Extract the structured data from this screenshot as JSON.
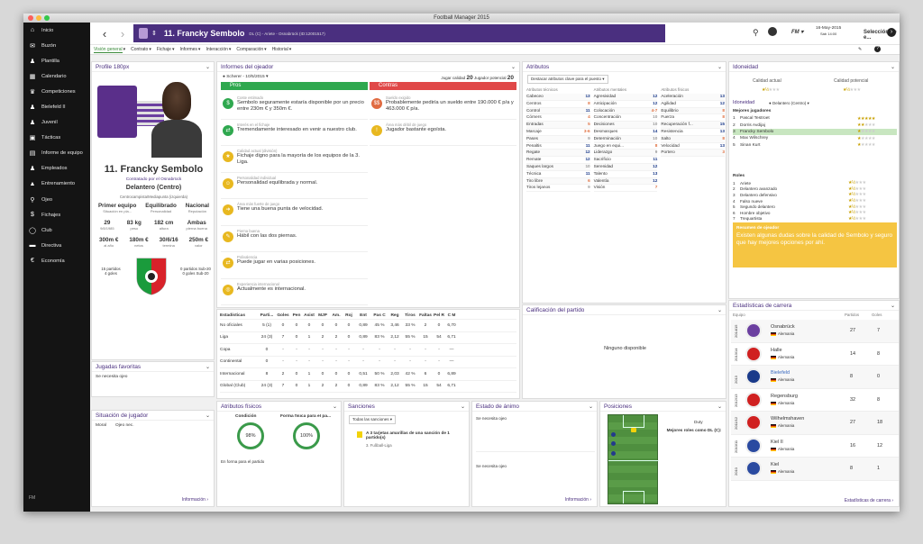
{
  "window_title": "Football Manager 2015",
  "sidebar": {
    "items": [
      {
        "icon": "home-icon",
        "glyph": "⌂",
        "label": "Inicio"
      },
      {
        "icon": "mail-icon",
        "glyph": "✉",
        "label": "Buzón"
      },
      {
        "icon": "people-icon",
        "glyph": "♟",
        "label": "Plantilla"
      },
      {
        "icon": "calendar-icon",
        "glyph": "▦",
        "label": "Calendario"
      },
      {
        "icon": "trophy-icon",
        "glyph": "♛",
        "label": "Competiciones"
      },
      {
        "icon": "people-icon",
        "glyph": "♟",
        "label": "Bielefeld II"
      },
      {
        "icon": "people-icon",
        "glyph": "♟",
        "label": "Juvenil"
      },
      {
        "icon": "tactics-icon",
        "glyph": "▣",
        "label": "Tácticas"
      },
      {
        "icon": "report-icon",
        "glyph": "▤",
        "label": "Informe de equipo"
      },
      {
        "icon": "staff-icon",
        "glyph": "♟",
        "label": "Empleados"
      },
      {
        "icon": "training-icon",
        "glyph": "▲",
        "label": "Entrenamiento"
      },
      {
        "icon": "search-icon",
        "glyph": "⚲",
        "label": "Ojeo"
      },
      {
        "icon": "transfer-icon",
        "glyph": "$",
        "label": "Fichajes"
      },
      {
        "icon": "club-icon",
        "glyph": "◯",
        "label": "Club"
      },
      {
        "icon": "board-icon",
        "glyph": "▬",
        "label": "Directiva"
      },
      {
        "icon": "finance-icon",
        "glyph": "€",
        "label": "Economía"
      }
    ],
    "footer": "FM"
  },
  "topbar": {
    "player_name": "11. Francky Sembolo",
    "player_sub": "DL (C) - Ariete - Osnabrück (ID:12001517)",
    "date": "16-May-2015",
    "day": "Sáb 14:00",
    "team_select": "Selección de e..."
  },
  "tabs": [
    "Visión general",
    "Contrato",
    "Fichaje",
    "Informes",
    "Interacción",
    "Comparación",
    "Historial"
  ],
  "profile": {
    "title": "Profile 180px",
    "name": "11. Francky Sembolo",
    "contract": "Contratado por el Osnabrück",
    "position": "Delantero (Centro)",
    "roles": "Centrocampista/Mediapunta (izquierda)",
    "status": [
      {
        "value": "Primer equipo",
        "label": "Situación en pla..."
      },
      {
        "value": "Equilibrado",
        "label": "Personalidad"
      },
      {
        "value": "Nacional",
        "label": "Reputación"
      }
    ],
    "stats1": [
      {
        "value": "29",
        "label": "9/8/1985"
      },
      {
        "value": "83 kg",
        "label": "peso"
      },
      {
        "value": "182 cm",
        "label": "altura"
      },
      {
        "value": "Ambas",
        "label": "pierna buena"
      }
    ],
    "stats2": [
      {
        "value": "300m €",
        "label": "al año"
      },
      {
        "value": "180m €",
        "label": "netos"
      },
      {
        "value": "30/6/16",
        "label": "termina"
      },
      {
        "value": "250m €",
        "label": "valor"
      }
    ],
    "caps": "15 partidos",
    "goals": "4 goles",
    "u20_caps": "0 partidos Sub-20",
    "u20_goals": "0 goles Sub-20"
  },
  "favorites": {
    "title": "Jugadas favoritas",
    "text": "Se necesita ojeo"
  },
  "situation": {
    "title": "Situación de jugador",
    "moral": "Moral",
    "value": "Ojeo nec.",
    "link": "Información"
  },
  "scout": {
    "title": "Informes del ojeador",
    "scout": "Scherer - 10/5/2015",
    "ability_label": "Jugar calidad",
    "ability": "20",
    "potential_label": "Jugador potencial",
    "potential": "20",
    "pros_label": "Pros",
    "cons_label": "Contras",
    "pros": [
      {
        "cat": "Coste estimado",
        "text": "Sembolo seguramente estaría disponible por un precio entre 230m € y 350m €.",
        "color": "#2fa84f",
        "glyph": "$"
      },
      {
        "cat": "Interés en el fichaje",
        "text": "Tremendamente interesado en venir a nuestro club.",
        "color": "#2fa84f",
        "glyph": "⇄"
      },
      {
        "cat": "Calidad actual (división)",
        "text": "Fichaje digno para la mayoría de los equipos de la 3. Liga.",
        "color": "#e8b820",
        "glyph": "★"
      },
      {
        "cat": "Personalidad individual",
        "text": "Personalidad equilibrada y normal.",
        "color": "#e8b820",
        "glyph": "☺"
      },
      {
        "cat": "Área más fuerte de juego",
        "text": "Tiene una buena punta de velocidad.",
        "color": "#e8b820",
        "glyph": "➜"
      },
      {
        "cat": "Pierna buena",
        "text": "Hábil con las dos piernas.",
        "color": "#e8b820",
        "glyph": "✎"
      },
      {
        "cat": "Polivalencia",
        "text": "Puede jugar en varias posiciones.",
        "color": "#e8b820",
        "glyph": "⇄"
      },
      {
        "cat": "Experiencia internacional",
        "text": "Actualmente es internacional.",
        "color": "#e8b820",
        "glyph": "◎"
      }
    ],
    "cons": [
      {
        "cat": "Sueldo exigido",
        "text": "Probablemente pediría un sueldo entre 190.000 € p/a y 463.000 € p/a.",
        "color": "#e06a40",
        "glyph": "$$"
      },
      {
        "cat": "Área más débil de juego",
        "text": "Jugador bastante egoísta.",
        "color": "#e8b820",
        "glyph": "!"
      }
    ]
  },
  "stats": {
    "headers": [
      "Estadísticas",
      "Parti...",
      "Goles",
      "Pen",
      "Asist",
      "MJP",
      "Am.",
      "Roj",
      "Ent",
      "Pas C",
      "Reg",
      "Tiros",
      "Faltas",
      "Pel R",
      "C M"
    ],
    "rows": [
      [
        "No oficiales",
        "5 (1)",
        "0",
        "0",
        "0",
        "0",
        "0",
        "0",
        "0,89",
        "45 %",
        "3,46",
        "33 %",
        "2",
        "0",
        "6,70"
      ],
      [
        "Liga",
        "24 (3)",
        "7",
        "0",
        "1",
        "2",
        "2",
        "0",
        "0,89",
        "83 %",
        "2,12",
        "55 %",
        "15",
        "54",
        "6,71"
      ],
      [
        "Copa",
        "0",
        "-",
        "-",
        "-",
        "-",
        "-",
        "-",
        "-",
        "-",
        "-",
        "-",
        "-",
        "-",
        "—"
      ],
      [
        "Continental",
        "0",
        "-",
        "-",
        "-",
        "-",
        "-",
        "-",
        "-",
        "-",
        "-",
        "-",
        "-",
        "-",
        "—"
      ],
      [
        "Internacional",
        "8",
        "2",
        "0",
        "1",
        "0",
        "0",
        "0",
        "0,51",
        "50 %",
        "2,03",
        "42 %",
        "6",
        "0",
        "6,89"
      ],
      [
        "Global (Club)",
        "24 (3)",
        "7",
        "0",
        "1",
        "2",
        "2",
        "0",
        "0,89",
        "83 %",
        "2,12",
        "55 %",
        "15",
        "54",
        "6,71"
      ]
    ]
  },
  "physical": {
    "title": "Atributos físicos",
    "cond_label": "Condición",
    "cond": "98%",
    "fit_label": "Forma física para el pa...",
    "fit": "100%",
    "note": "En forma para el partido"
  },
  "sanctions": {
    "title": "Sanciones",
    "filter": "Todas las sanciones",
    "item": "A 3 tarjetas amarillas de una sanción de 1 partido(s)",
    "league": "3. Fußball-Liga"
  },
  "mood": {
    "title": "Estado de ánimo",
    "text1": "Se necesita ojeo",
    "text2": "Se necesita ojeo",
    "link": "Información"
  },
  "positions": {
    "title": "Posiciones",
    "duty": "Duty",
    "best": "Mejores roles como DL (C):"
  },
  "attributes": {
    "title": "Atributos",
    "highlight": "Destacar atributos clave para el puesto",
    "cols": [
      "Atributos técnicos",
      "Atributos mentales",
      "Atributos físicos"
    ],
    "technical": [
      [
        "Cabeceo",
        "13"
      ],
      [
        "Centros",
        "8"
      ],
      [
        "Control",
        "11"
      ],
      [
        "Córners",
        "4"
      ],
      [
        "Entradas",
        "5"
      ],
      [
        "Marcaje",
        "3-6"
      ],
      [
        "Pases",
        "9"
      ],
      [
        "Penaltis",
        "11"
      ],
      [
        "Regate",
        "12"
      ],
      [
        "Remate",
        "12"
      ],
      [
        "Saques largos",
        "10"
      ],
      [
        "Técnica",
        "11"
      ],
      [
        "Tiro libre",
        "6"
      ],
      [
        "Tiros lejanos",
        "9"
      ]
    ],
    "mental": [
      [
        "Agresividad",
        "12"
      ],
      [
        "Anticipación",
        "12"
      ],
      [
        "Colocación",
        "4-7"
      ],
      [
        "Concentración",
        "10"
      ],
      [
        "Decisiones",
        "10"
      ],
      [
        "Desmarques",
        "14"
      ],
      [
        "Determinación",
        "10"
      ],
      [
        "Juego en equi...",
        "8"
      ],
      [
        "Liderazgo",
        "9"
      ],
      [
        "Sacrificio",
        "11"
      ],
      [
        "Serenidad",
        "12"
      ],
      [
        "Talento",
        "13"
      ],
      [
        "Valentía",
        "12"
      ],
      [
        "Visión",
        "7"
      ]
    ],
    "physical": [
      [
        "Aceleración",
        "13"
      ],
      [
        "Agilidad",
        "12"
      ],
      [
        "Equilibrio",
        "8"
      ],
      [
        "Fuerza",
        "8"
      ],
      [
        "Recuperación f...",
        "15"
      ],
      [
        "Resistencia",
        "13"
      ],
      [
        "Salto",
        "8"
      ],
      [
        "Velocidad",
        "13"
      ],
      [
        "Portero",
        "3"
      ]
    ]
  },
  "rating": {
    "title": "Calificación del partido",
    "text": "Ninguno disponible"
  },
  "ability": {
    "title": "Idoneidad",
    "current": "Calidad actual",
    "potential": "Calidad potencial",
    "subtitle": "Idoneidad",
    "role": "Delantero (Centro)",
    "best_label": "Mejores jugadores",
    "players": [
      [
        "1",
        "Pascal Testroet",
        "5"
      ],
      [
        "2",
        "Dorris Avdijaj",
        "2"
      ],
      [
        "3",
        "Francky Sembolo",
        "1"
      ],
      [
        "4",
        "Max Wilschrey",
        "1"
      ],
      [
        "5",
        "Sinan Kurt",
        "1"
      ]
    ],
    "roles_label": "Roles",
    "roles": [
      [
        "1",
        "Ariete"
      ],
      [
        "2",
        "Delantero avanzado"
      ],
      [
        "3",
        "Delantero defensivo"
      ],
      [
        "4",
        "Falso nueve"
      ],
      [
        "5",
        "Segundo delantero"
      ],
      [
        "6",
        "Hombre objetivo"
      ],
      [
        "7",
        "Trequartista"
      ]
    ]
  },
  "scout_summary": {
    "title": "Resumen de ojeador",
    "text": "Existen algunas dudas sobre la calidad de Sembolo y seguro que hay mejores opciones por ahí."
  },
  "career": {
    "title": "Estadísticas de carrera",
    "team_col": "Equipo",
    "games_col": "Partidos",
    "goals_col": "Goles",
    "link": "Estadísticas de carrera",
    "rows": [
      [
        "2014/15",
        "Osnabrück",
        "Alemania",
        "27",
        "7"
      ],
      [
        "2013/14",
        "Halle",
        "Alemania",
        "14",
        "8"
      ],
      [
        "2013",
        "Bielefeld",
        "Alemania",
        "8",
        "0"
      ],
      [
        "2012/13",
        "Regensburg",
        "Alemania",
        "32",
        "8"
      ],
      [
        "2011/12",
        "Wilhelmshaven",
        "Alemania",
        "27",
        "18"
      ],
      [
        "2010/11",
        "Kiel II",
        "Alemania",
        "16",
        "12"
      ],
      [
        "2010",
        "Kiel",
        "Alemania",
        "8",
        "1"
      ]
    ]
  }
}
